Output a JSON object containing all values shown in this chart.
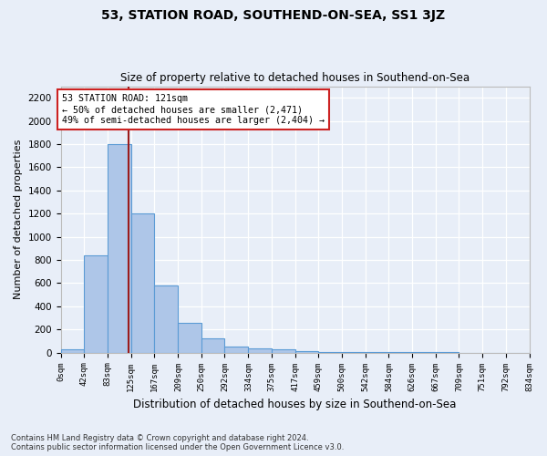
{
  "title": "53, STATION ROAD, SOUTHEND-ON-SEA, SS1 3JZ",
  "subtitle": "Size of property relative to detached houses in Southend-on-Sea",
  "xlabel": "Distribution of detached houses by size in Southend-on-Sea",
  "ylabel": "Number of detached properties",
  "footnote1": "Contains HM Land Registry data © Crown copyright and database right 2024.",
  "footnote2": "Contains public sector information licensed under the Open Government Licence v3.0.",
  "bin_edges": [
    0,
    42,
    83,
    125,
    167,
    209,
    250,
    292,
    334,
    375,
    417,
    459,
    500,
    542,
    584,
    626,
    667,
    709,
    751,
    792,
    834
  ],
  "bar_heights": [
    30,
    840,
    1800,
    1200,
    580,
    260,
    120,
    50,
    40,
    30,
    10,
    8,
    5,
    4,
    3,
    2,
    2,
    1,
    1,
    1
  ],
  "bar_color": "#aec6e8",
  "bar_edge_color": "#5b9bd5",
  "property_size": 121,
  "property_label": "53 STATION ROAD: 121sqm",
  "annotation_line1": "← 50% of detached houses are smaller (2,471)",
  "annotation_line2": "49% of semi-detached houses are larger (2,404) →",
  "vline_color": "#9b1c1c",
  "annotation_box_color": "#ffffff",
  "annotation_box_edge": "#cc2222",
  "ylim": [
    0,
    2300
  ],
  "xlim_max": 834,
  "background_color": "#e8eef8",
  "grid_color": "#ffffff",
  "yticks": [
    0,
    200,
    400,
    600,
    800,
    1000,
    1200,
    1400,
    1600,
    1800,
    2000,
    2200
  ]
}
